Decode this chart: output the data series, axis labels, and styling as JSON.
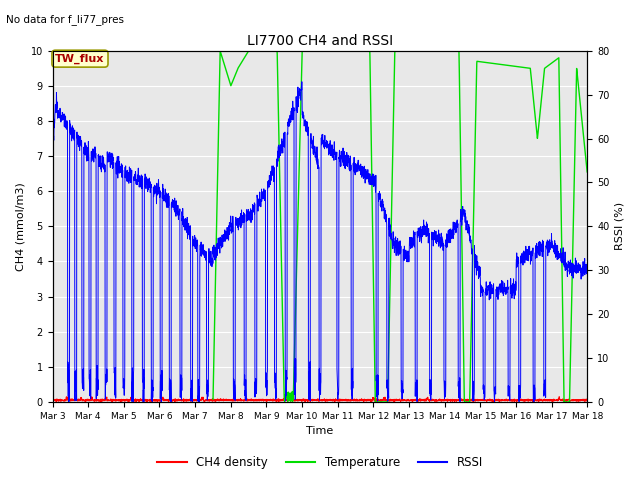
{
  "title": "LI7700 CH4 and RSSI",
  "top_left_note": "No data for f_li77_pres",
  "annotation_box": "TW_flux",
  "xlabel": "Time",
  "ylabel_left": "CH4 (mmol/m3)",
  "ylabel_right": "RSSI (%)",
  "ylim_left": [
    0,
    10.0
  ],
  "ylim_right": [
    0,
    80
  ],
  "yticks_left": [
    0.0,
    1.0,
    2.0,
    3.0,
    4.0,
    5.0,
    6.0,
    7.0,
    8.0,
    9.0,
    10.0
  ],
  "yticks_right": [
    0,
    10,
    20,
    30,
    40,
    50,
    60,
    70,
    80
  ],
  "xtick_labels": [
    "Mar 3",
    "Mar 4",
    "Mar 5",
    "Mar 6",
    "Mar 7",
    "Mar 8",
    "Mar 9",
    "Mar 10",
    "Mar 11",
    "Mar 12",
    "Mar 13",
    "Mar 14",
    "Mar 15",
    "Mar 16",
    "Mar 17",
    "Mar 18"
  ],
  "bg_color": "#e8e8e8",
  "legend_items": [
    {
      "label": "CH4 density",
      "color": "#ff0000"
    },
    {
      "label": "Temperature",
      "color": "#00dd00"
    },
    {
      "label": "RSSI",
      "color": "#0000ff"
    }
  ],
  "figsize": [
    6.4,
    4.8
  ],
  "dpi": 100
}
